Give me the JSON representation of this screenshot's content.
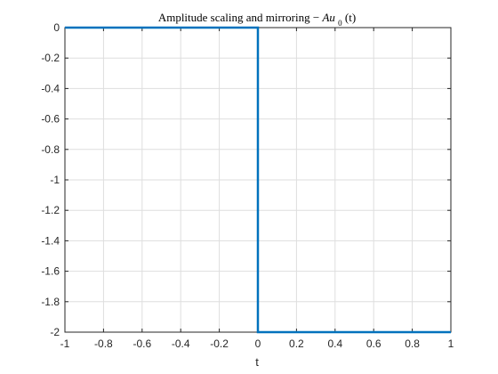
{
  "chart_data": {
    "type": "line",
    "title": {
      "text": "Amplitude scaling and mirroring ",
      "math_sign": "−",
      "math_var": "Au",
      "math_sub": "0",
      "math_arg": "(t)"
    },
    "xlabel": "t",
    "ylabel": "",
    "xlim": [
      -1,
      1
    ],
    "ylim": [
      -2,
      0
    ],
    "xticks": [
      -1,
      -0.8,
      -0.6,
      -0.4,
      -0.2,
      0,
      0.2,
      0.4,
      0.6,
      0.8,
      1
    ],
    "xtick_labels": [
      "-1",
      "-0.8",
      "-0.6",
      "-0.4",
      "-0.2",
      "0",
      "0.2",
      "0.4",
      "0.6",
      "0.8",
      "1"
    ],
    "yticks": [
      0,
      -0.2,
      -0.4,
      -0.6,
      -0.8,
      -1,
      -1.2,
      -1.4,
      -1.6,
      -1.8,
      -2
    ],
    "ytick_labels": [
      "0",
      "-0.2",
      "-0.4",
      "-0.6",
      "-0.8",
      "-1",
      "-1.2",
      "-1.4",
      "-1.6",
      "-1.8",
      "-2"
    ],
    "grid": true,
    "series": [
      {
        "color": "#0072BD",
        "x": [
          -1,
          0,
          0,
          1
        ],
        "y": [
          0,
          0,
          -2,
          -2
        ]
      }
    ]
  }
}
